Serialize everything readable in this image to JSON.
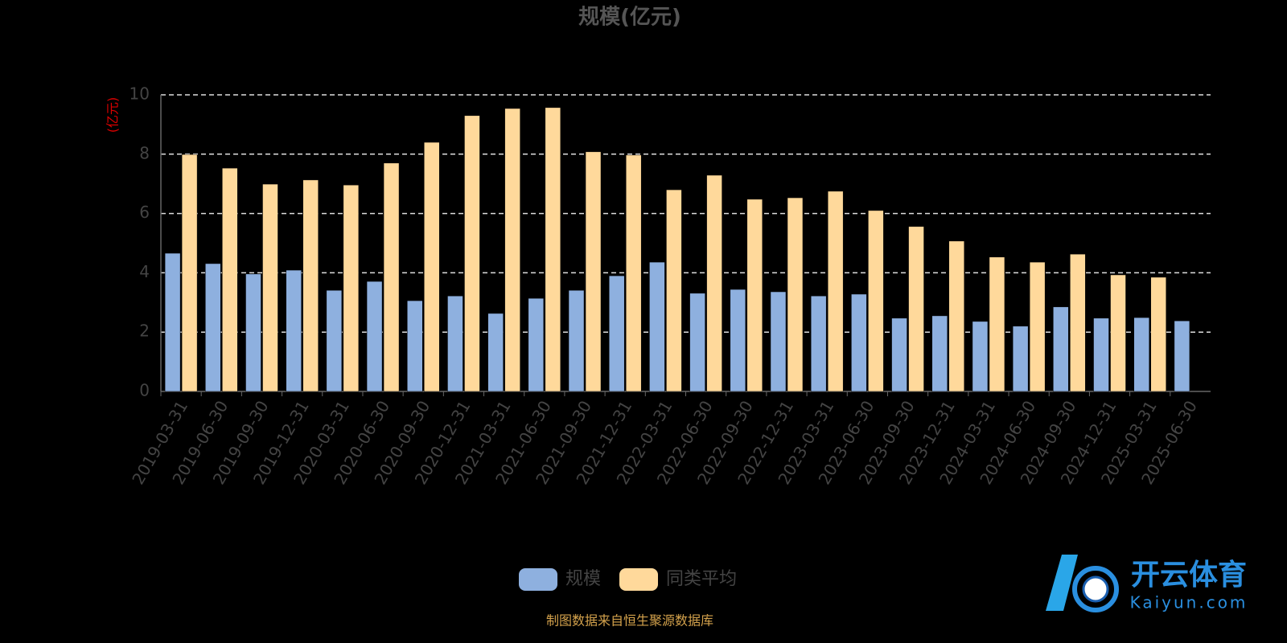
{
  "chart_data": {
    "type": "bar",
    "title": "规模(亿元)",
    "y_label": "(亿元)",
    "categories": [
      "2019-03-31",
      "2019-06-30",
      "2019-09-30",
      "2019-12-31",
      "2020-03-31",
      "2020-06-30",
      "2020-09-30",
      "2020-12-31",
      "2021-03-31",
      "2021-06-30",
      "2021-09-30",
      "2021-12-31",
      "2022-03-31",
      "2022-06-30",
      "2022-09-30",
      "2022-12-31",
      "2023-03-31",
      "2023-06-30",
      "2023-09-30",
      "2023-12-31",
      "2024-03-31",
      "2024-06-30",
      "2024-09-30",
      "2024-12-31",
      "2025-03-31",
      "2025-06-30"
    ],
    "series": [
      {
        "name": "规模",
        "color": "#8eb0df",
        "values": [
          4.66,
          4.31,
          3.96,
          4.09,
          3.41,
          3.71,
          3.06,
          3.22,
          2.63,
          3.14,
          3.41,
          3.9,
          4.36,
          3.31,
          3.44,
          3.36,
          3.22,
          3.28,
          2.47,
          2.55,
          2.36,
          2.2,
          2.85,
          2.47,
          2.49,
          2.38
        ]
      },
      {
        "name": "同类平均",
        "color": "#ffd99b",
        "values": [
          7.99,
          7.53,
          6.99,
          7.13,
          6.96,
          7.7,
          8.4,
          9.3,
          9.54,
          9.57,
          8.08,
          7.97,
          6.8,
          7.29,
          6.48,
          6.53,
          6.75,
          6.1,
          5.56,
          5.07,
          4.53,
          4.36,
          4.63,
          3.93,
          3.85,
          null
        ]
      }
    ],
    "ylim": [
      0,
      10
    ],
    "yticks": [
      0,
      2,
      4,
      6,
      8,
      10
    ],
    "grid": true,
    "source": "制图数据来自恒生聚源数据库"
  },
  "watermark": {
    "title": "开云体育",
    "subtitle": "Kaiyun.com"
  }
}
